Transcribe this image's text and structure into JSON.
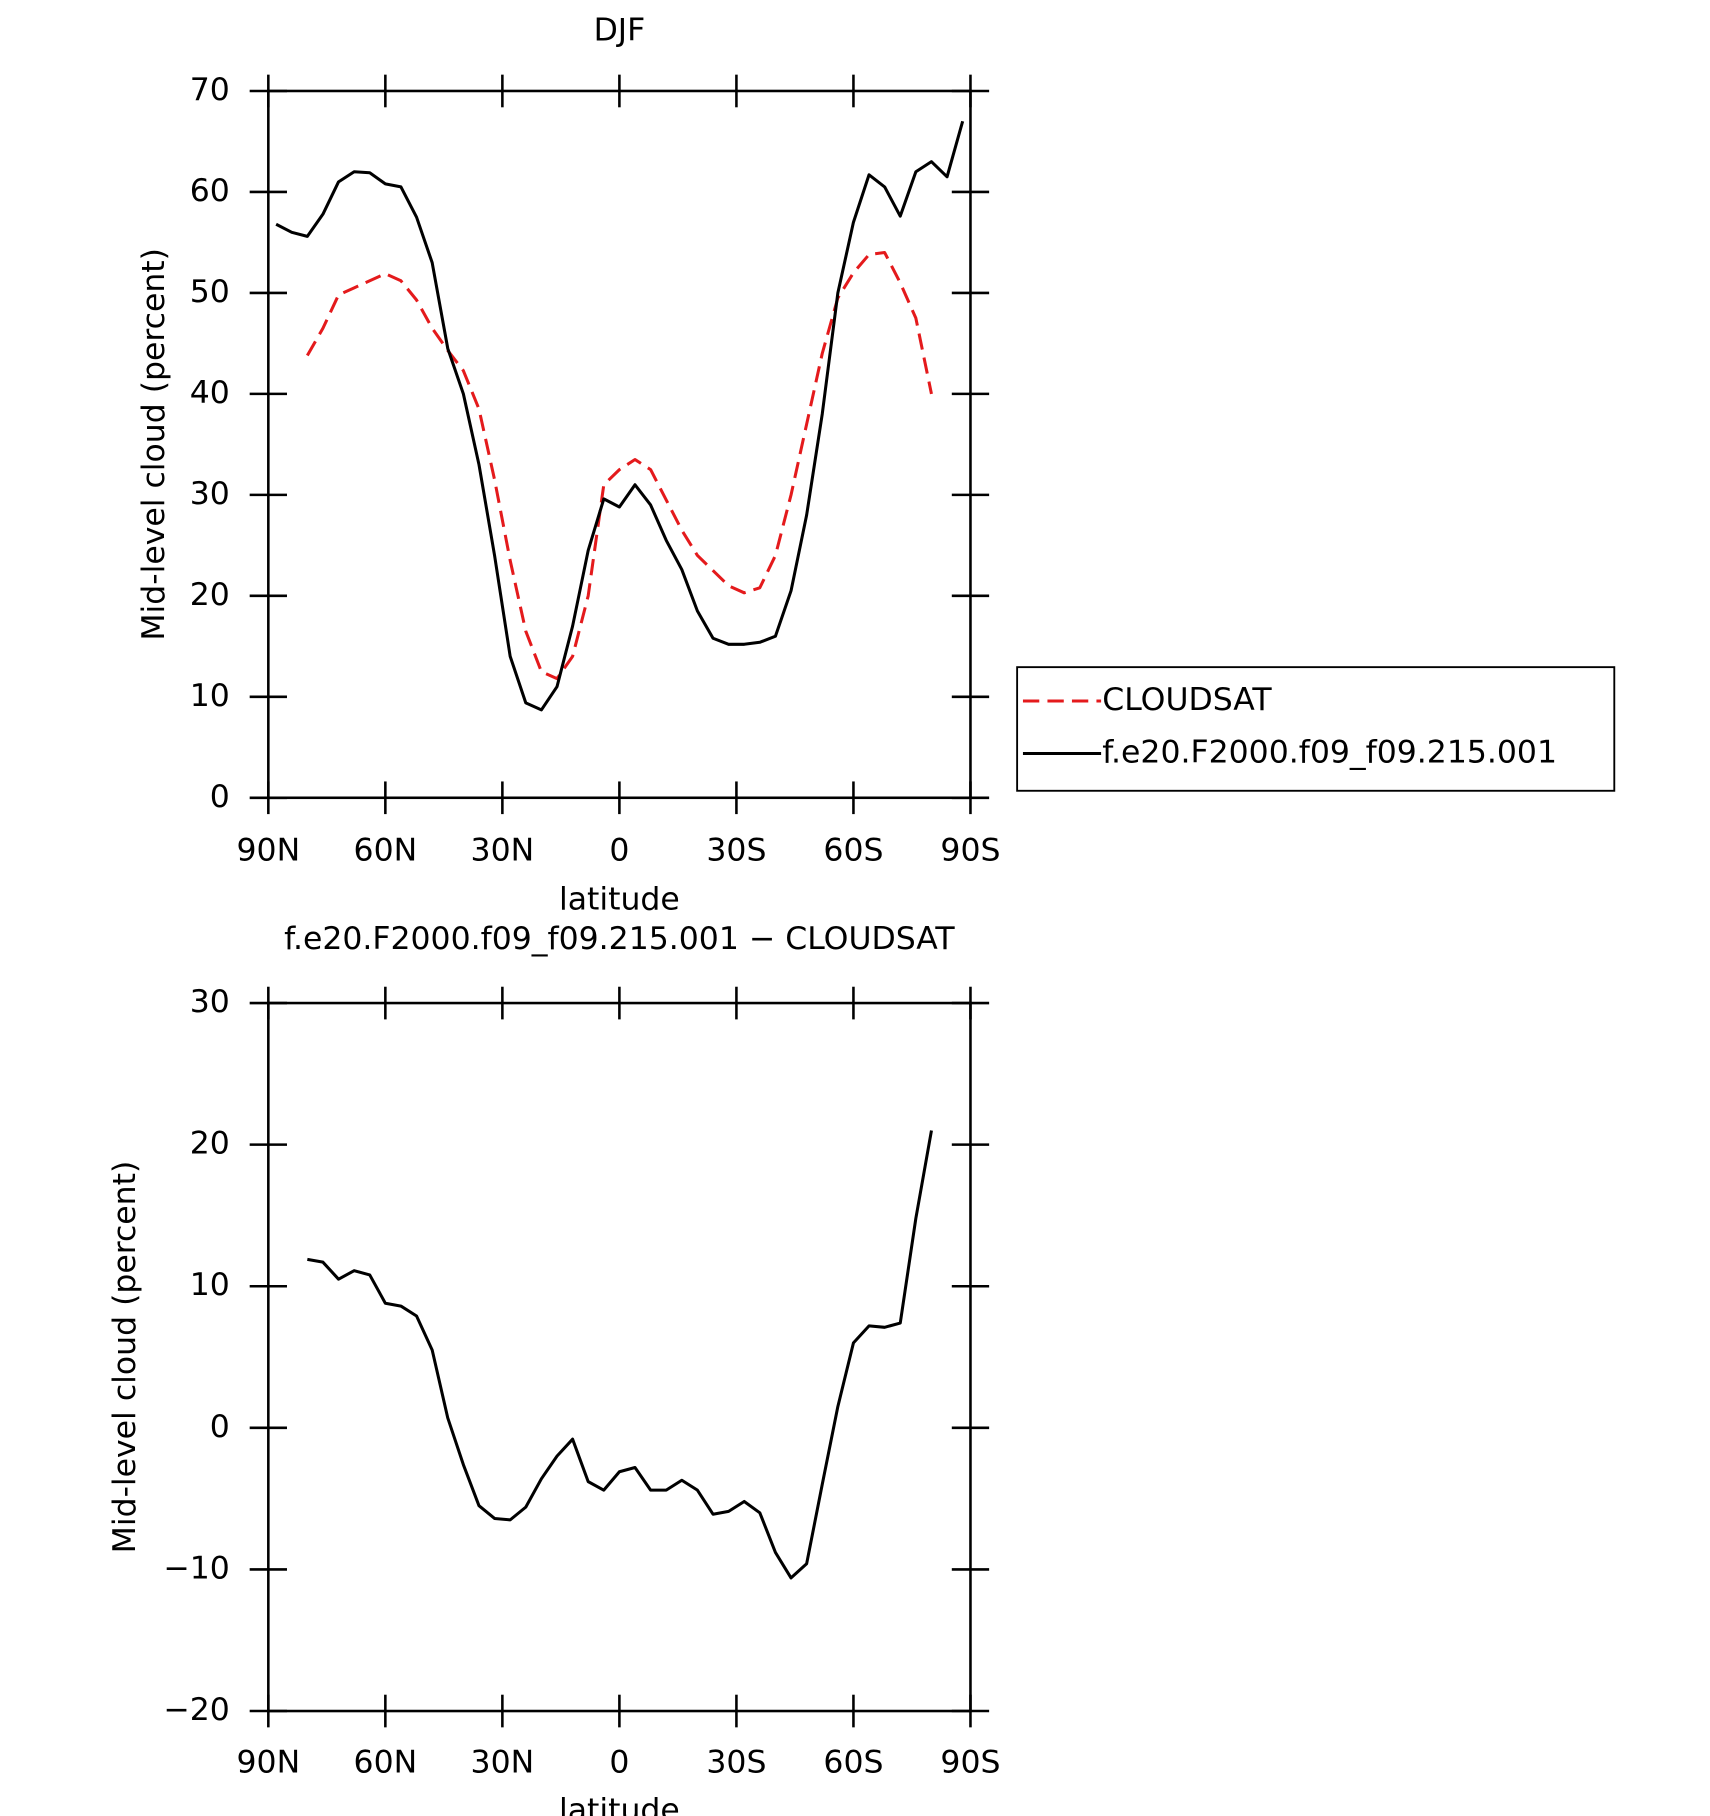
{
  "chart_data": [
    {
      "type": "line",
      "title": "DJF",
      "xlabel": "latitude",
      "ylabel": "Mid-level cloud (percent)",
      "x": [
        88,
        84,
        80,
        76,
        72,
        68,
        64,
        60,
        56,
        52,
        48,
        44,
        40,
        36,
        32,
        28,
        24,
        20,
        16,
        12,
        8,
        4,
        0,
        -4,
        -8,
        -12,
        -16,
        -20,
        -24,
        -28,
        -32,
        -36,
        -40,
        -44,
        -48,
        -52,
        -56,
        -60,
        -64,
        -68,
        -72,
        -76,
        -80,
        -84,
        -88
      ],
      "xlim": [
        90,
        -90
      ],
      "xticks": [
        {
          "value": 90,
          "label": "90N"
        },
        {
          "value": 60,
          "label": "60N"
        },
        {
          "value": 30,
          "label": "30N"
        },
        0,
        {
          "value": -30,
          "label": "30S"
        },
        {
          "value": -60,
          "label": "60S"
        },
        {
          "value": -90,
          "label": "90S"
        }
      ],
      "ylim": [
        0,
        70
      ],
      "yticks": [
        0,
        10,
        20,
        30,
        40,
        50,
        60,
        70
      ],
      "legend": "right",
      "series": [
        {
          "name": "CLOUDSAT",
          "color": "#e41a1c",
          "style": "dashed",
          "values": [
            null,
            null,
            43.8,
            46.5,
            49.8,
            50.5,
            51.2,
            51.9,
            51.2,
            49.3,
            46.5,
            44.3,
            42.3,
            38.5,
            31.5,
            23.5,
            16.5,
            12.5,
            11.8,
            14,
            20,
            31,
            32.5,
            33.5,
            32.5,
            29.5,
            26.5,
            24,
            22.5,
            21,
            20.3,
            20.8,
            24,
            30,
            37,
            44,
            49.5,
            52,
            53.8,
            54,
            51,
            47.5,
            40,
            null,
            null
          ]
        },
        {
          "name": "f.e20.F2000.f09_f09.215.001",
          "color": "#000000",
          "style": "solid",
          "values": [
            56.8,
            56,
            55.6,
            57.8,
            61,
            62,
            61.9,
            60.8,
            60.5,
            57.5,
            53,
            44.5,
            40,
            33,
            24,
            14,
            9.4,
            8.7,
            11,
            17,
            24.5,
            29.6,
            28.8,
            31,
            29,
            25.5,
            22.6,
            18.5,
            15.8,
            15.2,
            15.2,
            15.4,
            16,
            20.5,
            28,
            38,
            50,
            57,
            61.7,
            60.5,
            57.6,
            62,
            63,
            61.5,
            67
          ]
        }
      ]
    },
    {
      "type": "line",
      "title": "f.e20.F2000.f09_f09.215.001 − CLOUDSAT",
      "xlabel": "latitude",
      "ylabel": "Mid-level cloud (percent)",
      "x": [
        88,
        84,
        80,
        76,
        72,
        68,
        64,
        60,
        56,
        52,
        48,
        44,
        40,
        36,
        32,
        28,
        24,
        20,
        16,
        12,
        8,
        4,
        0,
        -4,
        -8,
        -12,
        -16,
        -20,
        -24,
        -28,
        -32,
        -36,
        -40,
        -44,
        -48,
        -52,
        -56,
        -60,
        -64,
        -68,
        -72,
        -76,
        -80,
        -84,
        -88
      ],
      "xlim": [
        90,
        -90
      ],
      "xticks": [
        {
          "value": 90,
          "label": "90N"
        },
        {
          "value": 60,
          "label": "60N"
        },
        {
          "value": 30,
          "label": "30N"
        },
        0,
        {
          "value": -30,
          "label": "30S"
        },
        {
          "value": -60,
          "label": "60S"
        },
        {
          "value": -90,
          "label": "90S"
        }
      ],
      "ylim": [
        -20,
        30
      ],
      "yticks": [
        {
          "value": -20,
          "label": "−20"
        },
        {
          "value": -10,
          "label": "−10"
        },
        0,
        10,
        20,
        30
      ],
      "series": [
        {
          "color": "#000000",
          "style": "solid",
          "values": [
            null,
            null,
            11.9,
            11.7,
            10.5,
            11.1,
            10.8,
            8.8,
            8.6,
            7.9,
            5.5,
            0.7,
            -2.6,
            -5.5,
            -6.4,
            -6.5,
            -5.6,
            -3.6,
            -2,
            -0.8,
            -3.8,
            -4.4,
            -3.1,
            -2.8,
            -4.4,
            -4.4,
            -3.7,
            -4.4,
            -6.1,
            -5.9,
            -5.2,
            -6,
            -8.8,
            -10.6,
            -9.6,
            -4,
            1.5,
            6,
            7.2,
            7.1,
            7.4,
            14.8,
            21,
            null,
            null
          ]
        }
      ]
    }
  ]
}
